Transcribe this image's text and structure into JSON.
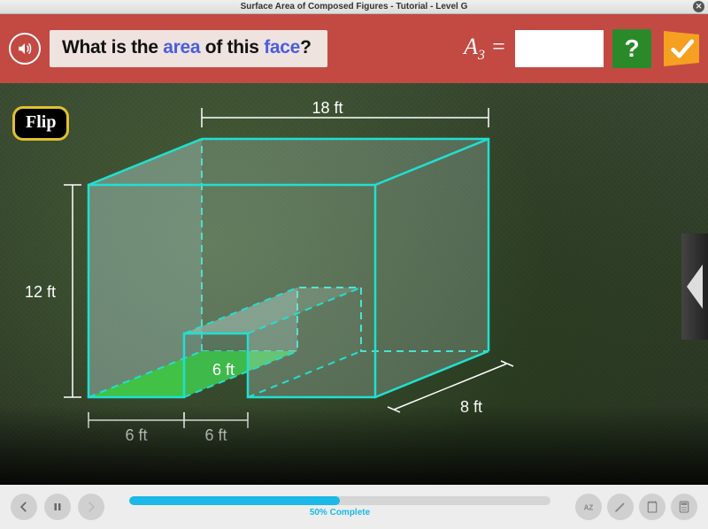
{
  "window": {
    "title": "Surface Area of Composed Figures - Tutorial - Level G"
  },
  "header": {
    "question_pre": "What is the ",
    "question_kw1": "area",
    "question_mid": " of this ",
    "question_kw2": "face",
    "question_post": "?",
    "answer_var": "A",
    "answer_sub": "3",
    "answer_eq": " = ",
    "answer_value": "",
    "hint_label": "?"
  },
  "stage": {
    "flip_label": "Flip",
    "dimensions": {
      "top_width": "18 ft",
      "left_height": "12 ft",
      "notch_height": "6 ft",
      "bottom_left": "6 ft",
      "bottom_mid": "6 ft",
      "depth": "8 ft"
    },
    "colors": {
      "edge": "#20e0d0",
      "highlight_face": "#1cb81c",
      "glass": "rgba(200,230,225,0.22)",
      "label": "#ffffff"
    }
  },
  "footer": {
    "progress_pct": 50,
    "progress_label": "50% Complete"
  }
}
